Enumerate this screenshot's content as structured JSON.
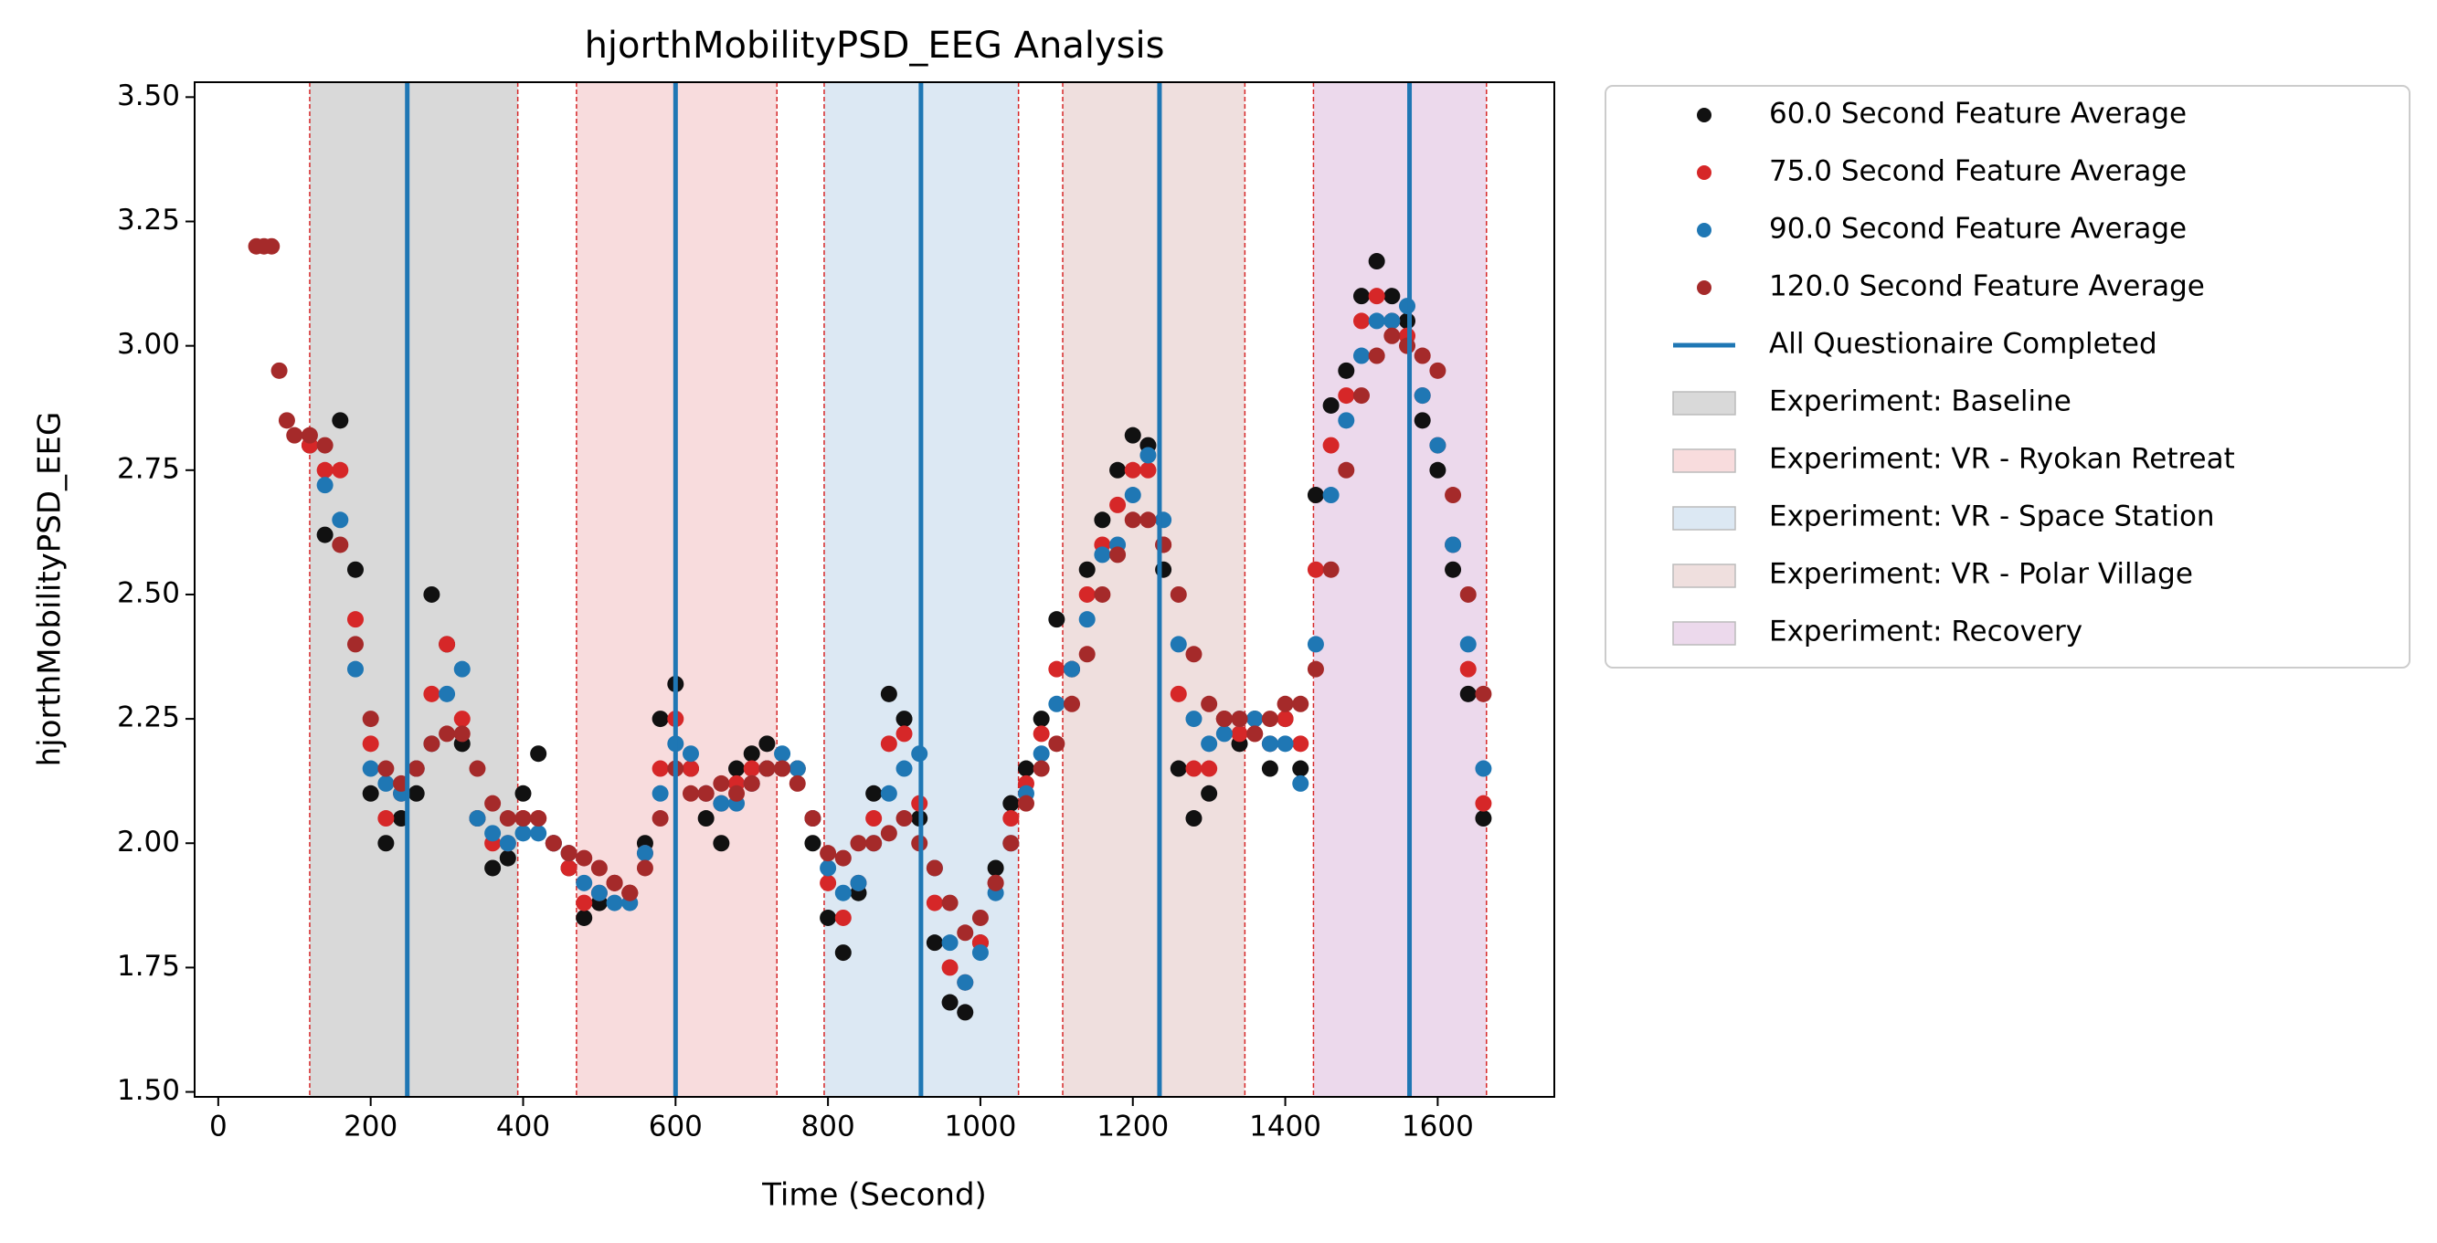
{
  "chart_data": {
    "type": "scatter",
    "title": "hjorthMobilityPSD_EEG Analysis",
    "xlabel": "Time (Second)",
    "ylabel": "hjorthMobilityPSD_EEG",
    "xlim": [
      -31,
      1753
    ],
    "ylim": [
      1.49,
      3.53
    ],
    "xticks": [
      0,
      200,
      400,
      600,
      800,
      1000,
      1200,
      1400,
      1600
    ],
    "yticks": [
      {
        "value": 1.5,
        "label": "1.50"
      },
      1.75,
      {
        "value": 2,
        "label": "2.00"
      },
      2.25,
      {
        "value": 2.5,
        "label": "2.50"
      },
      2.75,
      {
        "value": 3,
        "label": "3.00"
      },
      3.25,
      {
        "value": 3.5,
        "label": "3.50"
      }
    ],
    "series": [
      {
        "name": "60.0 Second Feature Average",
        "color": "#111111",
        "x": [
          120,
          140,
          160,
          180,
          200,
          220,
          240,
          260,
          280,
          300,
          320,
          340,
          360,
          380,
          400,
          420,
          440,
          460,
          480,
          500,
          520,
          540,
          560,
          580,
          600,
          620,
          640,
          660,
          680,
          700,
          720,
          740,
          760,
          780,
          800,
          820,
          840,
          860,
          880,
          900,
          920,
          940,
          960,
          980,
          1000,
          1020,
          1040,
          1060,
          1080,
          1100,
          1120,
          1140,
          1160,
          1180,
          1200,
          1220,
          1240,
          1260,
          1280,
          1300,
          1320,
          1340,
          1360,
          1380,
          1400,
          1420,
          1440,
          1460,
          1480,
          1500,
          1520,
          1540,
          1560,
          1580,
          1600,
          1620,
          1640,
          1660
        ],
        "values": [
          2.8,
          2.62,
          2.85,
          2.55,
          2.1,
          2.0,
          2.05,
          2.1,
          2.5,
          2.4,
          2.2,
          2.05,
          1.95,
          1.97,
          2.1,
          2.18,
          2.0,
          1.95,
          1.85,
          1.88,
          1.92,
          1.9,
          2.0,
          2.25,
          2.32,
          2.15,
          2.05,
          2.0,
          2.15,
          2.18,
          2.2,
          2.15,
          2.15,
          2.0,
          1.85,
          1.78,
          1.9,
          2.1,
          2.3,
          2.25,
          2.05,
          1.8,
          1.68,
          1.66,
          1.8,
          1.95,
          2.08,
          2.15,
          2.25,
          2.45,
          2.35,
          2.55,
          2.65,
          2.75,
          2.82,
          2.8,
          2.55,
          2.15,
          2.05,
          2.1,
          2.25,
          2.2,
          2.25,
          2.15,
          2.25,
          2.15,
          2.7,
          2.88,
          2.95,
          3.1,
          3.17,
          3.1,
          3.05,
          2.85,
          2.75,
          2.55,
          2.3,
          2.05
        ]
      },
      {
        "name": "75.0 Second Feature Average",
        "color": "#d62728",
        "x": [
          120,
          140,
          160,
          180,
          200,
          220,
          240,
          260,
          280,
          300,
          320,
          340,
          360,
          380,
          400,
          420,
          440,
          460,
          480,
          500,
          520,
          540,
          560,
          580,
          600,
          620,
          640,
          660,
          680,
          700,
          720,
          740,
          760,
          780,
          800,
          820,
          840,
          860,
          880,
          900,
          920,
          940,
          960,
          980,
          1000,
          1020,
          1040,
          1060,
          1080,
          1100,
          1120,
          1140,
          1160,
          1180,
          1200,
          1220,
          1240,
          1260,
          1280,
          1300,
          1320,
          1340,
          1360,
          1380,
          1400,
          1420,
          1440,
          1460,
          1480,
          1500,
          1520,
          1540,
          1560,
          1580,
          1600,
          1620,
          1640,
          1660
        ],
        "values": [
          2.8,
          2.75,
          2.75,
          2.45,
          2.2,
          2.05,
          2.1,
          2.15,
          2.3,
          2.4,
          2.25,
          2.05,
          2.0,
          2.0,
          2.05,
          2.05,
          2.0,
          1.95,
          1.88,
          1.9,
          1.92,
          1.9,
          1.98,
          2.15,
          2.25,
          2.15,
          2.1,
          2.08,
          2.12,
          2.15,
          2.15,
          2.15,
          2.15,
          2.05,
          1.92,
          1.85,
          1.92,
          2.05,
          2.2,
          2.22,
          2.08,
          1.88,
          1.75,
          1.72,
          1.8,
          1.92,
          2.05,
          2.12,
          2.22,
          2.35,
          2.35,
          2.5,
          2.6,
          2.68,
          2.75,
          2.75,
          2.6,
          2.3,
          2.15,
          2.15,
          2.25,
          2.22,
          2.22,
          2.2,
          2.25,
          2.2,
          2.55,
          2.8,
          2.9,
          3.05,
          3.1,
          3.05,
          3.02,
          2.9,
          2.8,
          2.6,
          2.35,
          2.08
        ]
      },
      {
        "name": "90.0 Second Feature Average",
        "color": "#1f77b4",
        "x": [
          140,
          160,
          180,
          200,
          220,
          240,
          260,
          280,
          300,
          320,
          340,
          360,
          380,
          400,
          420,
          440,
          460,
          480,
          500,
          520,
          540,
          560,
          580,
          600,
          620,
          640,
          660,
          680,
          700,
          720,
          740,
          760,
          780,
          800,
          820,
          840,
          860,
          880,
          900,
          920,
          940,
          960,
          980,
          1000,
          1020,
          1040,
          1060,
          1080,
          1100,
          1120,
          1140,
          1160,
          1180,
          1200,
          1220,
          1240,
          1260,
          1280,
          1300,
          1320,
          1340,
          1360,
          1380,
          1400,
          1420,
          1440,
          1460,
          1480,
          1500,
          1520,
          1540,
          1560,
          1580,
          1600,
          1620,
          1640,
          1660
        ],
        "values": [
          2.72,
          2.65,
          2.35,
          2.15,
          2.12,
          2.1,
          2.15,
          2.2,
          2.3,
          2.35,
          2.05,
          2.02,
          2.0,
          2.02,
          2.02,
          2.0,
          1.98,
          1.92,
          1.9,
          1.88,
          1.88,
          1.98,
          2.1,
          2.2,
          2.18,
          2.1,
          2.08,
          2.08,
          2.12,
          2.15,
          2.18,
          2.15,
          2.05,
          1.95,
          1.9,
          1.92,
          2.0,
          2.1,
          2.15,
          2.18,
          1.95,
          1.8,
          1.72,
          1.78,
          1.9,
          2.0,
          2.1,
          2.18,
          2.28,
          2.35,
          2.45,
          2.58,
          2.6,
          2.7,
          2.78,
          2.65,
          2.4,
          2.25,
          2.2,
          2.22,
          2.25,
          2.25,
          2.2,
          2.2,
          2.12,
          2.4,
          2.7,
          2.85,
          2.98,
          3.05,
          3.05,
          3.08,
          2.9,
          2.8,
          2.6,
          2.4,
          2.15
        ]
      },
      {
        "name": "120.0 Second Feature Average",
        "color": "#a52a2a",
        "x": [
          50,
          60,
          70,
          80,
          90,
          100,
          120,
          140,
          160,
          180,
          200,
          220,
          240,
          260,
          280,
          300,
          320,
          340,
          360,
          380,
          400,
          420,
          440,
          460,
          480,
          500,
          520,
          540,
          560,
          580,
          600,
          620,
          640,
          660,
          680,
          700,
          720,
          740,
          760,
          780,
          800,
          820,
          840,
          860,
          880,
          900,
          920,
          940,
          960,
          980,
          1000,
          1020,
          1040,
          1060,
          1080,
          1100,
          1120,
          1140,
          1160,
          1180,
          1200,
          1220,
          1240,
          1260,
          1280,
          1300,
          1320,
          1340,
          1360,
          1380,
          1400,
          1420,
          1440,
          1460,
          1480,
          1500,
          1520,
          1540,
          1560,
          1580,
          1600,
          1620,
          1640,
          1660
        ],
        "values": [
          3.2,
          3.2,
          3.2,
          2.95,
          2.85,
          2.82,
          2.82,
          2.8,
          2.6,
          2.4,
          2.25,
          2.15,
          2.12,
          2.15,
          2.2,
          2.22,
          2.22,
          2.15,
          2.08,
          2.05,
          2.05,
          2.05,
          2.0,
          1.98,
          1.97,
          1.95,
          1.92,
          1.9,
          1.95,
          2.05,
          2.15,
          2.1,
          2.1,
          2.12,
          2.1,
          2.12,
          2.15,
          2.15,
          2.12,
          2.05,
          1.98,
          1.97,
          2.0,
          2.0,
          2.02,
          2.05,
          2.0,
          1.95,
          1.88,
          1.82,
          1.85,
          1.92,
          2.0,
          2.08,
          2.15,
          2.2,
          2.28,
          2.38,
          2.5,
          2.58,
          2.65,
          2.65,
          2.6,
          2.5,
          2.38,
          2.28,
          2.25,
          2.25,
          2.22,
          2.25,
          2.28,
          2.28,
          2.35,
          2.55,
          2.75,
          2.9,
          2.98,
          3.02,
          3.0,
          2.98,
          2.95,
          2.7,
          2.5,
          2.3
        ]
      }
    ],
    "vlines": {
      "name": "All Questionaire Completed",
      "color": "#1f77b4",
      "x": [
        248,
        600,
        922,
        1235,
        1563
      ]
    },
    "regions": [
      {
        "name": "Experiment: Baseline",
        "color": "#d9d9d9",
        "edge_color": "#d62728",
        "start": 120,
        "end": 393
      },
      {
        "name": "Experiment: VR - Ryokan Retreat",
        "color": "#f8dcdd",
        "edge_color": "#d62728",
        "start": 470,
        "end": 733
      },
      {
        "name": "Experiment: VR - Space Station",
        "color": "#dce8f3",
        "edge_color": "#d62728",
        "start": 795,
        "end": 1050
      },
      {
        "name": "Experiment: VR - Polar Village",
        "color": "#efdfde",
        "edge_color": "#d62728",
        "start": 1108,
        "end": 1347
      },
      {
        "name": "Experiment: Recovery",
        "color": "#ecd9ec",
        "edge_color": "#d62728",
        "start": 1437,
        "end": 1664
      }
    ]
  }
}
